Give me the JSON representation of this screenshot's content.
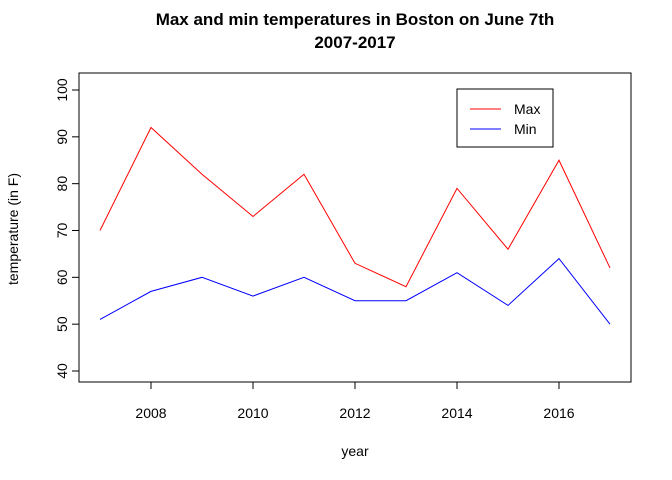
{
  "chart_data": {
    "type": "line",
    "title": "Max and min temperatures in Boston on June 7th",
    "subtitle": "2007-2017",
    "xlabel": "year",
    "ylabel": "temperature (in F)",
    "x": [
      2007,
      2008,
      2009,
      2010,
      2011,
      2012,
      2013,
      2014,
      2015,
      2016,
      2017
    ],
    "xlim": [
      2007,
      2017
    ],
    "ylim": [
      40,
      100
    ],
    "x_ticks": [
      "2008",
      "2010",
      "2012",
      "2014",
      "2016"
    ],
    "y_ticks": [
      "40",
      "50",
      "60",
      "70",
      "80",
      "90",
      "100"
    ],
    "grid": false,
    "legend_position": "top-right",
    "series": [
      {
        "name": "Max",
        "color": "#ff0000",
        "values": [
          70,
          92,
          82,
          73,
          82,
          63,
          58,
          79,
          66,
          85,
          62
        ]
      },
      {
        "name": "Min",
        "color": "#0000ff",
        "values": [
          51,
          57,
          60,
          56,
          60,
          55,
          55,
          61,
          54,
          64,
          50
        ]
      }
    ]
  }
}
